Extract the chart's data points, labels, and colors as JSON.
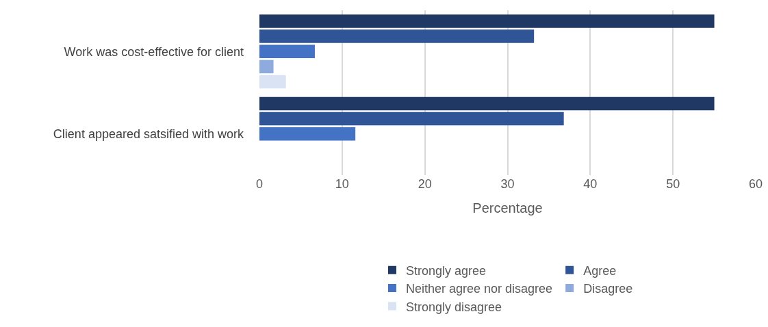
{
  "chart_data": {
    "type": "bar",
    "orientation": "horizontal",
    "categories": [
      "Work was cost-effective for client",
      "Client appeared satsified with work"
    ],
    "series": [
      {
        "name": "Strongly agree",
        "color": "#203864",
        "values": [
          55.0,
          55.0
        ]
      },
      {
        "name": "Agree",
        "color": "#2f5597",
        "values": [
          33.2,
          36.8
        ]
      },
      {
        "name": "Neither agree nor disagree",
        "color": "#4472c4",
        "values": [
          6.7,
          11.6
        ]
      },
      {
        "name": "Disagree",
        "color": "#8faadc",
        "values": [
          1.7,
          0
        ]
      },
      {
        "name": "Strongly disagree",
        "color": "#dae3f3",
        "values": [
          3.2,
          0
        ]
      }
    ],
    "xlabel": "Percentage",
    "xlim": [
      0,
      60
    ],
    "xticks": [
      0,
      10,
      20,
      30,
      40,
      50,
      60
    ],
    "grid": "x",
    "legend": "bottom"
  }
}
